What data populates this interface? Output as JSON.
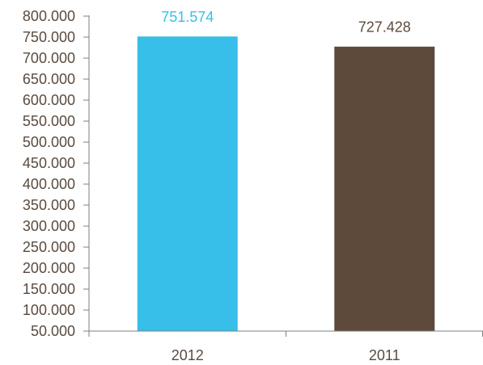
{
  "chart_data": {
    "type": "bar",
    "categories": [
      "2012",
      "2011"
    ],
    "values": [
      751574,
      727428
    ],
    "value_labels": [
      "751.574",
      "727.428"
    ],
    "bar_colors": [
      "#38bfe9",
      "#5d4a3b"
    ],
    "label_colors": [
      "#38bfe9",
      "#5d4a3b"
    ],
    "ylim": [
      50000,
      800000
    ],
    "y_ticks": [
      50000,
      100000,
      150000,
      200000,
      250000,
      300000,
      350000,
      400000,
      450000,
      500000,
      550000,
      600000,
      650000,
      700000,
      750000,
      800000
    ],
    "y_tick_labels": [
      "50.000",
      "100.000",
      "150.000",
      "200.000",
      "250.000",
      "300.000",
      "350.000",
      "400.000",
      "450.000",
      "500.000",
      "550.000",
      "600.000",
      "650.000",
      "700.000",
      "750.000",
      "800.000"
    ],
    "grid": false,
    "legend": "none",
    "axis_color": "#7f7f7f",
    "text_color": "#5a4a3f"
  }
}
